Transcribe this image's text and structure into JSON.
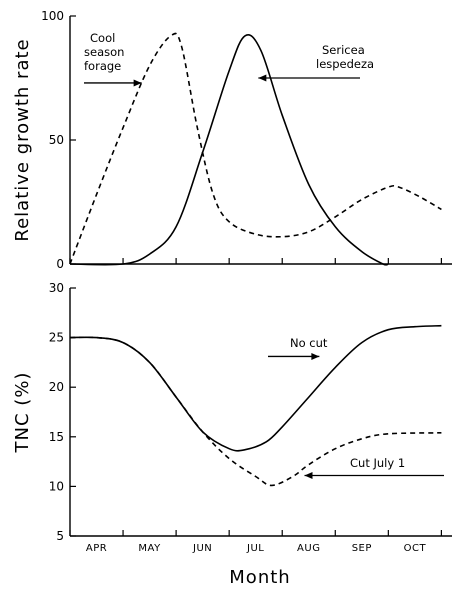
{
  "chart_data": [
    {
      "type": "line",
      "ylabel": "Relative growth rate",
      "ylim": [
        0,
        100
      ],
      "yticks": [
        0,
        50,
        100
      ],
      "x": [
        "APR",
        "MAY",
        "JUN",
        "JUL",
        "AUG",
        "SEP",
        "OCT"
      ],
      "xlim": [
        0,
        7.2
      ],
      "series": [
        {
          "name": "Cool season forage",
          "style": "dashed",
          "points": [
            [
              0,
              0
            ],
            [
              0.5,
              28
            ],
            [
              1,
              55
            ],
            [
              1.5,
              80
            ],
            [
              1.9,
              92
            ],
            [
              2.1,
              88
            ],
            [
              2.4,
              55
            ],
            [
              2.7,
              28
            ],
            [
              3,
              17
            ],
            [
              3.5,
              12
            ],
            [
              4,
              11
            ],
            [
              4.5,
              13
            ],
            [
              5,
              19
            ],
            [
              5.5,
              26
            ],
            [
              6,
              31
            ],
            [
              6.2,
              31
            ],
            [
              6.6,
              27
            ],
            [
              7,
              22
            ]
          ]
        },
        {
          "name": "Sericea lespedeza",
          "style": "solid",
          "points": [
            [
              0,
              0
            ],
            [
              1,
              0
            ],
            [
              1.5,
              4
            ],
            [
              2,
              15
            ],
            [
              2.5,
              45
            ],
            [
              3,
              78
            ],
            [
              3.3,
              92
            ],
            [
              3.6,
              86
            ],
            [
              4,
              60
            ],
            [
              4.5,
              32
            ],
            [
              5,
              15
            ],
            [
              5.5,
              5
            ],
            [
              5.9,
              0
            ],
            [
              6,
              0
            ]
          ]
        }
      ],
      "annotations": [
        {
          "text_lines": [
            "Cool",
            "season",
            "forage"
          ],
          "target": "Cool season forage"
        },
        {
          "text_lines": [
            "Sericea",
            "lespedeza"
          ],
          "target": "Sericea lespedeza"
        }
      ]
    },
    {
      "type": "line",
      "ylabel": "TNC (%)",
      "xlabel": "Month",
      "ylim": [
        5,
        30
      ],
      "yticks": [
        5,
        10,
        15,
        20,
        25,
        30
      ],
      "x": [
        "APR",
        "MAY",
        "JUN",
        "JUL",
        "AUG",
        "SEP",
        "OCT"
      ],
      "xlim": [
        0,
        7.2
      ],
      "series": [
        {
          "name": "No cut",
          "style": "solid",
          "points": [
            [
              0,
              25
            ],
            [
              0.5,
              25
            ],
            [
              1,
              24.5
            ],
            [
              1.5,
              22.5
            ],
            [
              2,
              19
            ],
            [
              2.5,
              15.5
            ],
            [
              3,
              13.8
            ],
            [
              3.3,
              13.7
            ],
            [
              3.7,
              14.5
            ],
            [
              4,
              16
            ],
            [
              4.5,
              19
            ],
            [
              5,
              22
            ],
            [
              5.5,
              24.5
            ],
            [
              6,
              25.8
            ],
            [
              6.5,
              26.1
            ],
            [
              7,
              26.2
            ]
          ]
        },
        {
          "name": "Cut July 1",
          "style": "dashed",
          "points": [
            [
              0,
              25
            ],
            [
              0.5,
              25
            ],
            [
              1,
              24.5
            ],
            [
              1.5,
              22.5
            ],
            [
              2,
              19
            ],
            [
              2.5,
              15.5
            ],
            [
              3,
              12.8
            ],
            [
              3.5,
              11
            ],
            [
              3.8,
              10.1
            ],
            [
              4.2,
              11
            ],
            [
              4.5,
              12.2
            ],
            [
              5,
              13.8
            ],
            [
              5.5,
              14.8
            ],
            [
              6,
              15.3
            ],
            [
              7,
              15.4
            ]
          ]
        }
      ],
      "annotations": [
        {
          "text": "No cut",
          "target": "No cut"
        },
        {
          "text": "Cut July 1",
          "target": "Cut July 1"
        }
      ]
    }
  ]
}
